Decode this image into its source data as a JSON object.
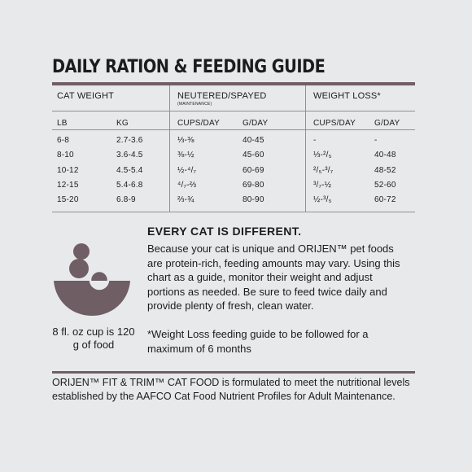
{
  "title": "DAILY RATION & FEEDING GUIDE",
  "table": {
    "groups": {
      "cat_weight": "CAT WEIGHT",
      "neutered": "NEUTERED/SPAYED",
      "neutered_sub": "(MAINTENANCE)",
      "weight_loss": "WEIGHT LOSS*"
    },
    "columns": [
      "LB",
      "KG",
      "CUPS/DAY",
      "G/DAY",
      "CUPS/DAY",
      "G/DAY"
    ],
    "rows": [
      [
        "6-8",
        "2.7-3.6",
        "⅓-⅜",
        "40-45",
        "-",
        "-"
      ],
      [
        "8-10",
        "3.6-4.5",
        "⅜-½",
        "45-60",
        "⅓-²/₅",
        "40-48"
      ],
      [
        "10-12",
        "4.5-5.4",
        "½-⁴/₇",
        "60-69",
        "²/₅-³/₇",
        "48-52"
      ],
      [
        "12-15",
        "5.4-6.8",
        "⁴/₇-⅔",
        "69-80",
        "³/₇-½",
        "52-60"
      ],
      [
        "15-20",
        "6.8-9",
        "⅔-¾",
        "80-90",
        "½-³/₅",
        "60-72"
      ]
    ]
  },
  "info": {
    "heading": "EVERY CAT IS DIFFERENT.",
    "body": "Because your cat is unique and ORIJEN™ pet foods are protein-rich, feeding amounts may vary. Using this chart as a guide, monitor their weight and adjust portions as needed. Be sure to feed twice daily and provide plenty of fresh, clean water.",
    "note": "*Weight Loss feeding guide to be followed for a maximum of 6 months",
    "cup_caption": "8 fl. oz cup is 120 g of food",
    "icon": "food-bowl-icon"
  },
  "footer": "ORIJEN™ FIT & TRIM™ CAT FOOD is formulated to meet the nutritional levels established by the AAFCO Cat Food Nutrient Profiles for Adult Maintenance.",
  "colors": {
    "accent": "#6f5e63",
    "background": "#e8e9eb",
    "text": "#1c1c1e"
  }
}
